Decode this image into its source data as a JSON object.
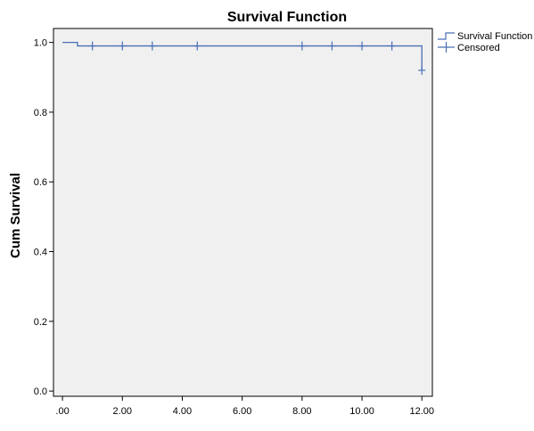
{
  "chart_data": {
    "type": "line",
    "title": "Survival Function",
    "xlabel": "",
    "ylabel": "Cum Survival",
    "xlim": [
      -0.3,
      12.35
    ],
    "ylim": [
      -0.015,
      1.04
    ],
    "x_ticks": [
      0,
      2,
      4,
      6,
      8,
      10,
      12
    ],
    "x_tick_labels": [
      ".00",
      "2.00",
      "4.00",
      "6.00",
      "8.00",
      "10.00",
      "12.00"
    ],
    "y_ticks": [
      0,
      0.2,
      0.4,
      0.6,
      0.8,
      1.0
    ],
    "y_tick_labels": [
      "0.0",
      "0.2",
      "0.4",
      "0.6",
      "0.8",
      "1.0"
    ],
    "grid": false,
    "legend": "top-right",
    "series": [
      {
        "name": "Survival Function",
        "kind": "step",
        "color": "#4a6fb5",
        "x": [
          0,
          0.5,
          12
        ],
        "y": [
          1.0,
          0.99,
          0.92
        ]
      },
      {
        "name": "Censored",
        "kind": "censor-marks",
        "color": "#4a6fb5",
        "x": [
          1,
          2,
          3,
          4.5,
          8,
          9,
          10,
          11,
          12
        ],
        "y": [
          0.99,
          0.99,
          0.99,
          0.99,
          0.99,
          0.99,
          0.99,
          0.99,
          0.92
        ]
      }
    ],
    "plot_background": "#f0f0f0"
  }
}
